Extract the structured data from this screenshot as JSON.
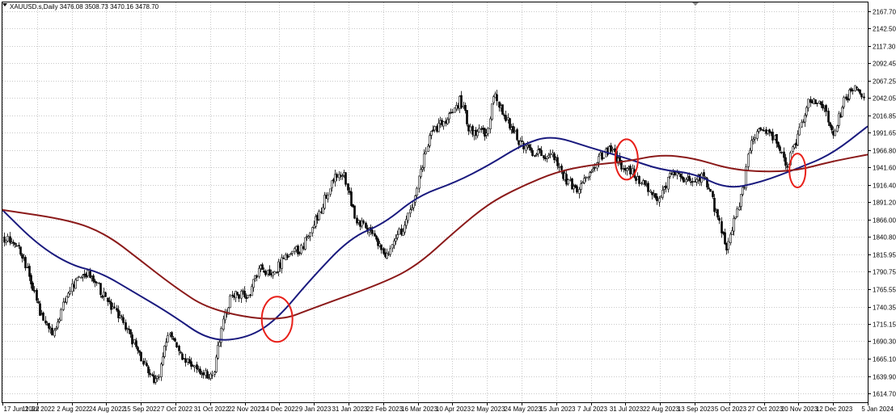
{
  "chart_data": {
    "type": "candlestick",
    "title": "XAUUSD.s,Daily  3476.08 3508.73 3470.16 3478.70",
    "grid": true,
    "ylim": [
      1602.0,
      2180.0
    ],
    "y_ticks": [
      "2167.70",
      "2142.50",
      "2117.30",
      "2092.45",
      "2067.25",
      "2042.05",
      "2016.85",
      "1991.65",
      "1966.80",
      "1941.60",
      "1916.40",
      "1891.20",
      "1866.00",
      "1840.80",
      "1815.95",
      "1790.75",
      "1765.55",
      "1740.35",
      "1715.15",
      "1690.30",
      "1665.10",
      "1639.90",
      "1614.70"
    ],
    "x_ticks": [
      "17 Jun 2022",
      "11 Jul 2022",
      "2 Aug 2022",
      "24 Aug 2022",
      "15 Sep 2022",
      "7 Oct 2022",
      "31 Oct 2022",
      "22 Nov 2022",
      "14 Dec 2022",
      "9 Jan 2023",
      "31 Jan 2023",
      "22 Feb 2023",
      "16 Mar 2023",
      "10 Apr 2023",
      "2 May 2023",
      "24 May 2023",
      "15 Jun 2023",
      "7 Jul 2023",
      "31 Jul 2023",
      "22 Aug 2023",
      "13 Sep 2023",
      "5 Oct 2023",
      "27 Oct 2023",
      "20 Nov 2023",
      "12 Dec 2023",
      "5 Jan 2024"
    ],
    "price_path": [
      [
        "2022-06-17",
        1840
      ],
      [
        "2022-06-28",
        1825
      ],
      [
        "2022-07-05",
        1780
      ],
      [
        "2022-07-12",
        1725
      ],
      [
        "2022-07-21",
        1700
      ],
      [
        "2022-07-29",
        1760
      ],
      [
        "2022-08-10",
        1790
      ],
      [
        "2022-08-17",
        1775
      ],
      [
        "2022-08-25",
        1745
      ],
      [
        "2022-09-05",
        1715
      ],
      [
        "2022-09-15",
        1668
      ],
      [
        "2022-09-26",
        1630
      ],
      [
        "2022-10-04",
        1705
      ],
      [
        "2022-10-12",
        1670
      ],
      [
        "2022-10-21",
        1650
      ],
      [
        "2022-11-01",
        1640
      ],
      [
        "2022-11-03",
        1655
      ],
      [
        "2022-11-08",
        1715
      ],
      [
        "2022-11-14",
        1760
      ],
      [
        "2022-11-25",
        1755
      ],
      [
        "2022-12-02",
        1795
      ],
      [
        "2022-12-12",
        1790
      ],
      [
        "2022-12-20",
        1815
      ],
      [
        "2022-12-30",
        1825
      ],
      [
        "2023-01-10",
        1875
      ],
      [
        "2023-01-20",
        1925
      ],
      [
        "2023-01-27",
        1930
      ],
      [
        "2023-02-03",
        1870
      ],
      [
        "2023-02-15",
        1840
      ],
      [
        "2023-02-24",
        1815
      ],
      [
        "2023-03-02",
        1840
      ],
      [
        "2023-03-10",
        1870
      ],
      [
        "2023-03-16",
        1920
      ],
      [
        "2023-03-24",
        1990
      ],
      [
        "2023-04-06",
        2015
      ],
      [
        "2023-04-13",
        2040
      ],
      [
        "2023-04-19",
        1995
      ],
      [
        "2023-05-01",
        1990
      ],
      [
        "2023-05-04",
        2050
      ],
      [
        "2023-05-12",
        2015
      ],
      [
        "2023-05-22",
        1975
      ],
      [
        "2023-06-01",
        1960
      ],
      [
        "2023-06-12",
        1960
      ],
      [
        "2023-06-22",
        1920
      ],
      [
        "2023-06-29",
        1910
      ],
      [
        "2023-07-06",
        1925
      ],
      [
        "2023-07-14",
        1958
      ],
      [
        "2023-07-20",
        1968
      ],
      [
        "2023-07-27",
        1945
      ],
      [
        "2023-08-03",
        1935
      ],
      [
        "2023-08-15",
        1905
      ],
      [
        "2023-08-21",
        1890
      ],
      [
        "2023-08-30",
        1940
      ],
      [
        "2023-09-08",
        1920
      ],
      [
        "2023-09-20",
        1930
      ],
      [
        "2023-09-28",
        1870
      ],
      [
        "2023-10-05",
        1822
      ],
      [
        "2023-10-09",
        1862
      ],
      [
        "2023-10-16",
        1920
      ],
      [
        "2023-10-20",
        1980
      ],
      [
        "2023-10-27",
        2000
      ],
      [
        "2023-11-03",
        1990
      ],
      [
        "2023-11-13",
        1945
      ],
      [
        "2023-11-20",
        1985
      ],
      [
        "2023-11-28",
        2040
      ],
      [
        "2023-12-04",
        2035
      ],
      [
        "2023-12-07",
        2030
      ],
      [
        "2023-12-13",
        1985
      ],
      [
        "2023-12-20",
        2035
      ],
      [
        "2023-12-28",
        2065
      ],
      [
        "2024-01-03",
        2040
      ]
    ],
    "series": [
      {
        "name": "",
        "color": "#1a1a7e",
        "values": [
          [
            "2022-06-17",
            1880
          ],
          [
            "2022-07-10",
            1830
          ],
          [
            "2022-08-01",
            1800
          ],
          [
            "2022-08-20",
            1790
          ],
          [
            "2022-09-12",
            1760
          ],
          [
            "2022-10-05",
            1730
          ],
          [
            "2022-10-31",
            1690
          ],
          [
            "2022-11-25",
            1695
          ],
          [
            "2022-12-14",
            1722
          ],
          [
            "2023-01-05",
            1780
          ],
          [
            "2023-01-31",
            1840
          ],
          [
            "2023-02-22",
            1860
          ],
          [
            "2023-03-16",
            1900
          ],
          [
            "2023-04-10",
            1920
          ],
          [
            "2023-05-02",
            1945
          ],
          [
            "2023-05-24",
            1975
          ],
          [
            "2023-06-12",
            1988
          ],
          [
            "2023-07-07",
            1970
          ],
          [
            "2023-07-31",
            1955
          ],
          [
            "2023-08-22",
            1938
          ],
          [
            "2023-09-13",
            1933
          ],
          [
            "2023-10-05",
            1910
          ],
          [
            "2023-10-27",
            1920
          ],
          [
            "2023-11-20",
            1940
          ],
          [
            "2023-12-12",
            1960
          ],
          [
            "2024-01-05",
            2001
          ]
        ]
      },
      {
        "name": "",
        "color": "#8b1a1a",
        "values": [
          [
            "2022-06-17",
            1880
          ],
          [
            "2022-08-01",
            1865
          ],
          [
            "2022-08-24",
            1845
          ],
          [
            "2022-09-15",
            1808
          ],
          [
            "2022-10-07",
            1770
          ],
          [
            "2022-10-31",
            1735
          ],
          [
            "2022-12-14",
            1718
          ],
          [
            "2023-01-09",
            1740
          ],
          [
            "2023-02-22",
            1775
          ],
          [
            "2023-03-16",
            1800
          ],
          [
            "2023-04-10",
            1850
          ],
          [
            "2023-05-02",
            1890
          ],
          [
            "2023-05-24",
            1915
          ],
          [
            "2023-06-15",
            1935
          ],
          [
            "2023-07-07",
            1945
          ],
          [
            "2023-07-31",
            1950
          ],
          [
            "2023-08-22",
            1960
          ],
          [
            "2023-09-13",
            1955
          ],
          [
            "2023-10-05",
            1940
          ],
          [
            "2023-10-27",
            1935
          ],
          [
            "2023-11-20",
            1937
          ],
          [
            "2023-12-12",
            1950
          ],
          [
            "2024-01-05",
            1960
          ]
        ]
      }
    ],
    "annotations": [
      {
        "date": "2022-12-14",
        "value": 1722
      },
      {
        "date": "2023-07-31",
        "value": 1953
      },
      {
        "date": "2023-11-20",
        "value": 1937
      }
    ]
  }
}
